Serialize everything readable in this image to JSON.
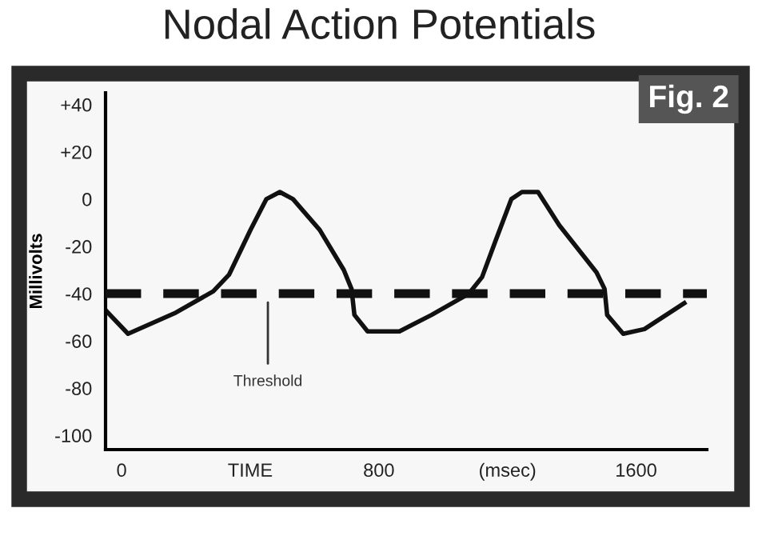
{
  "chart_data": {
    "type": "line",
    "title": "Nodal Action Potentials",
    "ylabel": "Millivolts",
    "annotations": [
      "Fig. 2"
    ],
    "x": [
      -50,
      20,
      169,
      285,
      334,
      401,
      450,
      492,
      533,
      616,
      691,
      715,
      724,
      765,
      864,
      964,
      1080,
      1121,
      1162,
      1212,
      1245,
      1295,
      1361,
      1477,
      1502,
      1510,
      1560,
      1626,
      1750
    ],
    "series": [
      {
        "color": "#111111",
        "values": [
          -47,
          -57,
          -48,
          -39,
          -32,
          -13,
          0,
          3,
          0,
          -13,
          -30,
          -38,
          -49,
          -56,
          -56,
          -49,
          -40,
          -33,
          -18,
          0,
          3,
          3,
          -11,
          -31,
          -38,
          -49,
          -57,
          -55,
          -44
        ]
      }
    ],
    "xlim": [
      -50,
      1820
    ],
    "ylim": [
      -106,
      45
    ],
    "xticks": [
      0,
      {
        "value": 400,
        "label": "TIME"
      },
      800,
      {
        "value": 1200,
        "label": "(msec)"
      },
      1600
    ],
    "yticks": [
      {
        "value": 40,
        "label": "+40"
      },
      {
        "value": 20,
        "label": "+20"
      },
      0,
      -20,
      -40,
      -60,
      -80,
      -100
    ],
    "ref_lines": [
      {
        "axis": "y",
        "value": -40,
        "label": "Threshold",
        "color": "#111111",
        "line_style": "dashed"
      }
    ],
    "grid": false,
    "legend": false,
    "marker": "none",
    "line_style": "solid"
  }
}
